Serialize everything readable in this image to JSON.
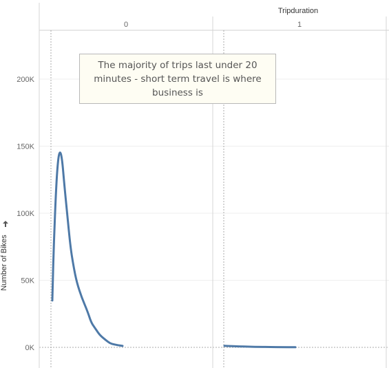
{
  "chart_data": {
    "type": "line",
    "column_header_title": "Tripduration",
    "ylabel": "Number of Bikes",
    "ylim": [
      0,
      230000
    ],
    "y_ticks": [
      {
        "value": 0,
        "label": "0K"
      },
      {
        "value": 50000,
        "label": "50K"
      },
      {
        "value": 100000,
        "label": "100K"
      },
      {
        "value": 150000,
        "label": "150K"
      },
      {
        "value": 200000,
        "label": "200K"
      }
    ],
    "panes": [
      {
        "label": "0",
        "points": [
          [
            0.0,
            35000
          ],
          [
            0.02,
            75000
          ],
          [
            0.05,
            115000
          ],
          [
            0.08,
            140000
          ],
          [
            0.11,
            147000
          ],
          [
            0.14,
            140000
          ],
          [
            0.17,
            122000
          ],
          [
            0.21,
            100000
          ],
          [
            0.26,
            74000
          ],
          [
            0.3,
            61000
          ],
          [
            0.35,
            48000
          ],
          [
            0.42,
            37000
          ],
          [
            0.5,
            27000
          ],
          [
            0.55,
            19000
          ],
          [
            0.6,
            15000
          ],
          [
            0.65,
            11000
          ],
          [
            0.7,
            8000
          ],
          [
            0.76,
            5500
          ],
          [
            0.82,
            3000
          ],
          [
            0.88,
            2200
          ],
          [
            0.94,
            1600
          ],
          [
            1.0,
            1100
          ]
        ]
      },
      {
        "label": "1",
        "points": [
          [
            0.0,
            1200
          ],
          [
            0.1,
            900
          ],
          [
            0.2,
            700
          ],
          [
            0.35,
            500
          ],
          [
            0.5,
            350
          ],
          [
            0.65,
            250
          ],
          [
            0.8,
            180
          ],
          [
            1.0,
            100
          ]
        ]
      }
    ],
    "annotation": "The majority of trips last under 20 minutes - short term travel is where business is",
    "line_color": "#4e79a7",
    "grid": true
  }
}
